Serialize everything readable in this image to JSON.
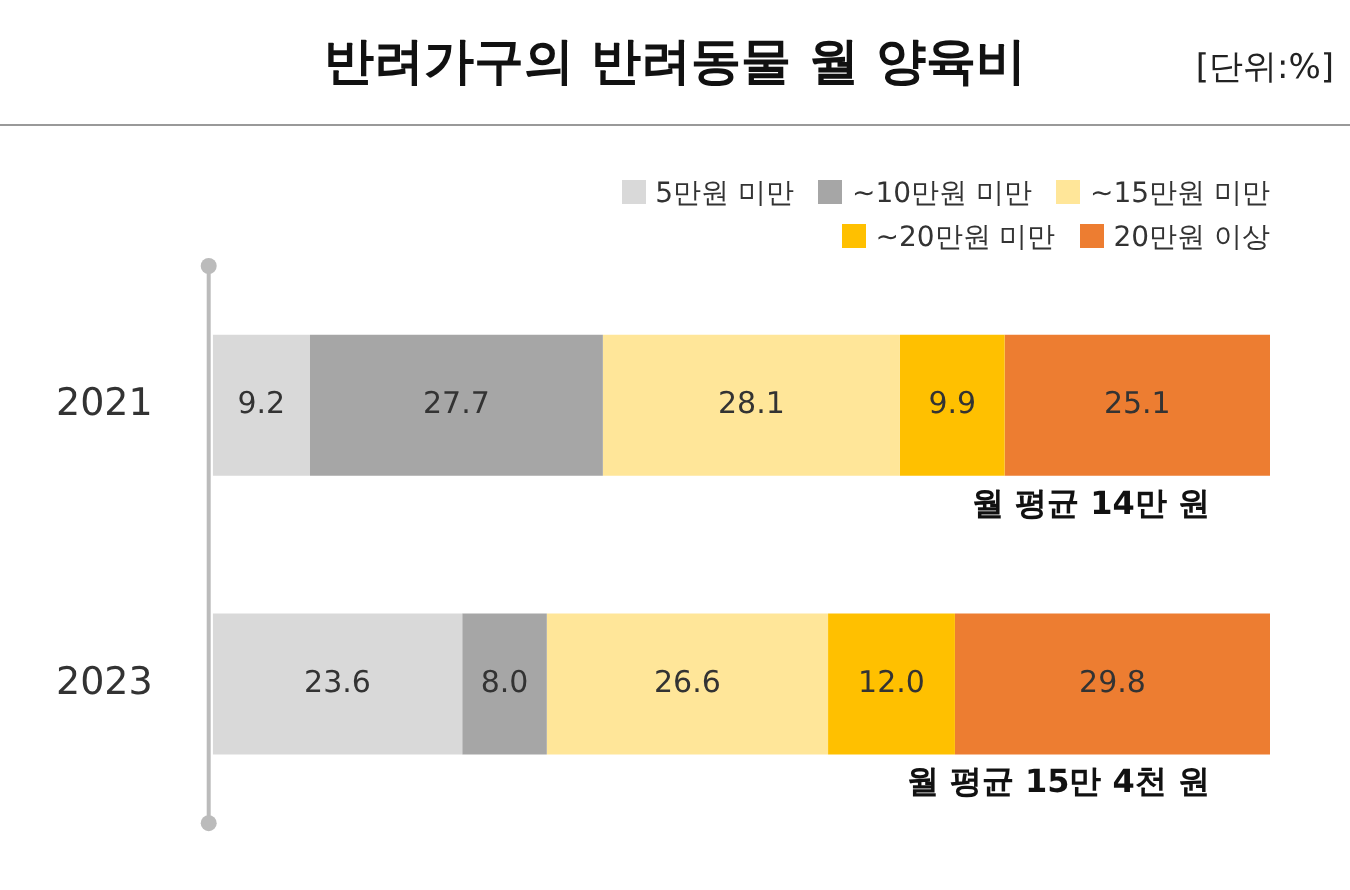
{
  "chart_data": {
    "type": "bar",
    "orientation": "horizontal",
    "stacked": true,
    "title": "반려가구의 반려동물 월 양육비",
    "subtitle": "[단위:%]",
    "categories": [
      "2021",
      "2023"
    ],
    "series": [
      {
        "name": "5만원 미만",
        "color": "#d9d9d9",
        "values": [
          9.2,
          23.6
        ],
        "value_labels": [
          "9.2",
          "23.6"
        ]
      },
      {
        "name": "~10만원 미만",
        "color": "#a6a6a6",
        "values": [
          27.7,
          8.0
        ],
        "value_labels": [
          "27.7",
          "8.0"
        ]
      },
      {
        "name": "~15만원 미만",
        "color": "#ffe699",
        "values": [
          28.1,
          26.6
        ],
        "value_labels": [
          "28.1",
          "26.6"
        ]
      },
      {
        "name": "~20만원 미만",
        "color": "#ffc000",
        "values": [
          9.9,
          12.0
        ],
        "value_labels": [
          "9.9",
          "12.0"
        ]
      },
      {
        "name": "20만원 이상",
        "color": "#ed7d31",
        "values": [
          25.1,
          29.8
        ],
        "value_labels": [
          "25.1",
          "29.8"
        ]
      }
    ],
    "xlim": [
      0,
      100
    ],
    "tick_labels": "y",
    "grid": false,
    "legend": "top right",
    "annotations": [
      "월 평균 14만 원",
      "월 평균 15만 4천 원"
    ]
  }
}
